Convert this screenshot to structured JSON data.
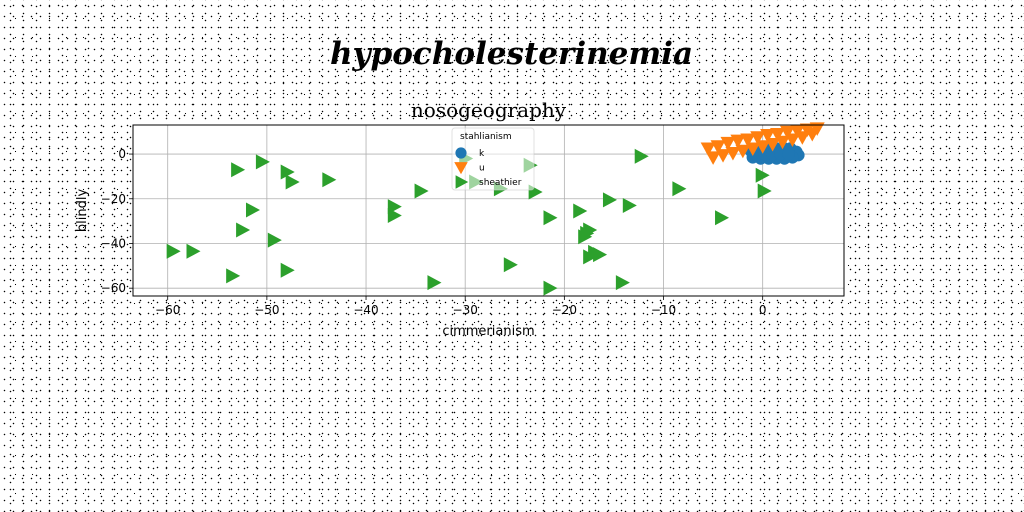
{
  "suptitle": "hypocholesterinemia",
  "chart_data": {
    "type": "scatter",
    "title": "nosogeography",
    "xlabel": "cimmerianism",
    "ylabel": "blindly",
    "xlim": [
      -63.5,
      8.2
    ],
    "ylim": [
      -63.5,
      13.0
    ],
    "xticks": [
      -60,
      -50,
      -40,
      -30,
      -20,
      -10,
      0
    ],
    "yticks": [
      -60,
      -40,
      -20,
      0
    ],
    "grid": true,
    "legend": {
      "title": "stahlianism",
      "placement": "top-center"
    },
    "series": [
      {
        "name": "k",
        "marker": "circle",
        "color": "#1f77b4",
        "x": [
          -1.2,
          -0.4,
          0.4,
          1.2,
          2.0,
          2.8,
          3.4,
          3.6,
          3.0,
          2.2,
          1.4,
          0.6,
          -0.2,
          -1.0,
          -0.6,
          0.2,
          1.0,
          1.8,
          2.6
        ],
        "y": [
          1.5,
          2.0,
          2.5,
          2.8,
          3.0,
          2.5,
          1.0,
          -0.5,
          -1.5,
          -2.0,
          -2.0,
          -2.0,
          -2.0,
          -1.5,
          -0.5,
          0.0,
          0.0,
          0.0,
          0.0
        ]
      },
      {
        "name": "u",
        "marker": "triangle-down",
        "color": "#ff7f0e",
        "x": [
          -5.5,
          -4.5,
          -3.5,
          -2.5,
          -1.5,
          -0.5,
          0.5,
          1.5,
          2.5,
          3.5,
          4.5,
          5.5,
          5.0,
          4.0,
          3.0,
          2.0,
          1.0,
          0.0,
          -1.0,
          -2.0,
          -3.0,
          -4.0,
          -5.0
        ],
        "y": [
          2.5,
          3.5,
          5.0,
          6.0,
          6.5,
          7.5,
          8.5,
          9.0,
          10.0,
          10.5,
          11.0,
          11.5,
          9.0,
          7.5,
          6.5,
          5.5,
          4.5,
          3.5,
          2.5,
          1.5,
          0.5,
          -0.5,
          -1.5
        ]
      },
      {
        "name": "sheathier",
        "marker": "triangle-right",
        "color": "#2ca02c",
        "x": [
          -59.5,
          -57.5,
          -53.5,
          -53.0,
          -52.5,
          -51.5,
          -50.5,
          -49.3,
          -48.0,
          -48.0,
          -47.5,
          -43.8,
          -37.2,
          -37.2,
          -34.5,
          -33.2,
          -30.0,
          -29.0,
          -26.5,
          -25.5,
          -23.5,
          -23.0,
          -21.5,
          -21.5,
          -18.5,
          -18.0,
          -17.8,
          -17.5,
          -17.5,
          -17.0,
          -16.5,
          -15.5,
          -14.2,
          -13.5,
          -12.3,
          -8.5,
          -4.2,
          -0.1,
          0.1
        ],
        "y": [
          -43.5,
          -43.5,
          -54.5,
          -7.0,
          -34.0,
          -25.0,
          -3.5,
          -38.5,
          -52.0,
          -8.0,
          -12.5,
          -11.5,
          -23.5,
          -27.5,
          -16.5,
          -57.5,
          -2.0,
          -12.5,
          -15.5,
          -49.5,
          -5.0,
          -17.0,
          -28.5,
          -60.0,
          -25.5,
          -37.0,
          -35.5,
          -46.0,
          -34.0,
          -44.0,
          -45.0,
          -20.5,
          -57.5,
          -23.0,
          -1.0,
          -15.5,
          -28.5,
          -9.5,
          -16.5
        ]
      }
    ]
  }
}
